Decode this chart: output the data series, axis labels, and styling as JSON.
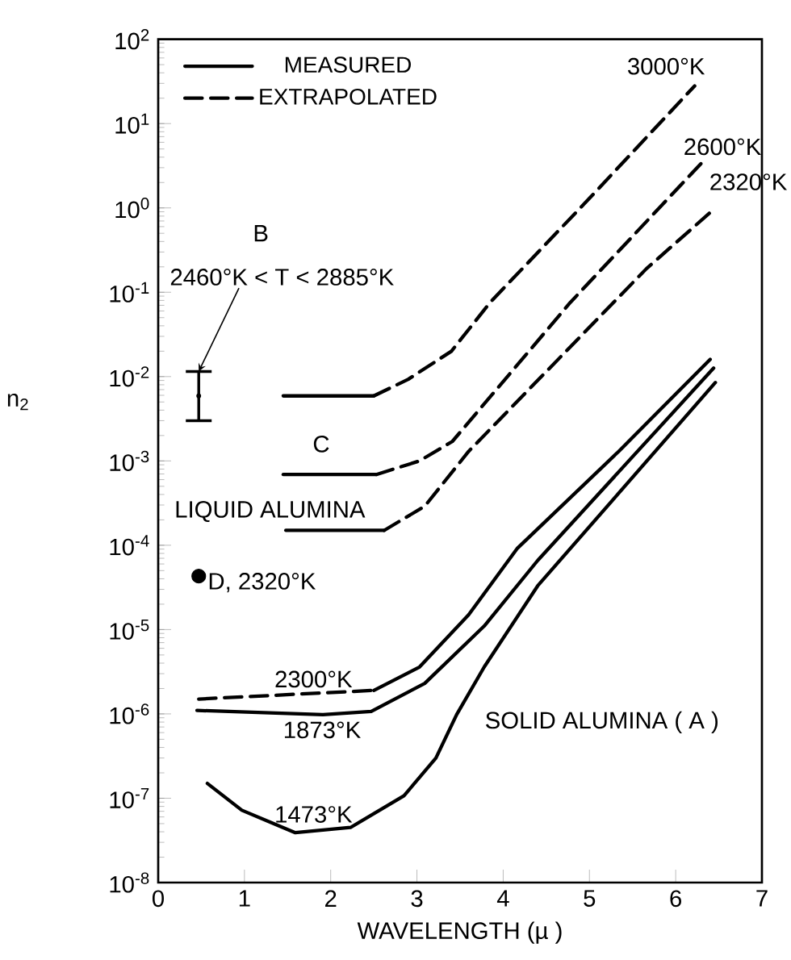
{
  "chart_data": {
    "type": "line",
    "xlabel": "WAVELENGTH (µ )",
    "ylabel": "n$_{2}$",
    "log": "y",
    "xlim": [
      0,
      7
    ],
    "ylim": [
      1e-08,
      100
    ],
    "xticks": [
      0,
      1,
      2,
      3,
      4,
      5,
      6,
      7
    ],
    "yticks": [
      {
        "value": 1e-08,
        "label": "10$^{-8}$"
      },
      {
        "value": 1e-07,
        "label": "10$^{-7}$"
      },
      {
        "value": 1e-06,
        "label": "10$^{-6}$"
      },
      {
        "value": 1e-05,
        "label": "10$^{-5}$"
      },
      {
        "value": 0.0001,
        "label": "10$^{-4}$"
      },
      {
        "value": 0.001,
        "label": "10$^{-3}$"
      },
      {
        "value": 0.01,
        "label": "10$^{-2}$"
      },
      {
        "value": 0.1,
        "label": "10$^{-1}$"
      },
      {
        "value": 1,
        "label": "10$^{0}$"
      },
      {
        "value": 10,
        "label": "10$^{1}$"
      },
      {
        "value": 100,
        "label": "10$^{2}$"
      }
    ],
    "grid": false,
    "legend": "top left",
    "series": [
      {
        "name": "MEASURED",
        "color": "#000000",
        "line_style": "solid",
        "x": [
          1.45,
          2.5
        ],
        "values": [
          0.0059,
          0.0059
        ]
      },
      {
        "name": "EXTRAPOLATED",
        "color": "#000000",
        "line_style": "dashed",
        "x": [
          2.5,
          2.9,
          3.4,
          3.85,
          5,
          6.22
        ],
        "values": [
          0.0059,
          0.0093,
          0.02,
          0.076,
          1.3,
          28
        ]
      },
      {
        "color": "#000000",
        "line_style": "solid",
        "x": [
          1.45,
          2.53
        ],
        "values": [
          0.00069,
          0.00069
        ]
      },
      {
        "color": "#000000",
        "line_style": "dashed",
        "x": [
          2.53,
          3.03,
          3.41,
          4.78,
          6.31
        ],
        "values": [
          0.00069,
          0.001,
          0.0017,
          0.076,
          3.5
        ]
      },
      {
        "color": "#000000",
        "line_style": "solid",
        "x": [
          1.48,
          2.62
        ],
        "values": [
          0.00015,
          0.00015
        ]
      },
      {
        "color": "#000000",
        "line_style": "dashed",
        "x": [
          2.62,
          3.09,
          3.6,
          5.66,
          6.46
        ],
        "values": [
          0.00015,
          0.00029,
          0.0013,
          0.19,
          1.0
        ]
      },
      {
        "color": "#000000",
        "line_style": "dashed",
        "x": [
          0.47,
          2.5
        ],
        "values": [
          1.5e-06,
          1.9e-06
        ]
      },
      {
        "color": "#000000",
        "line_style": "solid",
        "x": [
          2.5,
          3.03,
          3.6,
          4.16,
          5.34,
          6.4
        ],
        "values": [
          1.9e-06,
          3.6e-06,
          1.5e-05,
          9.1e-05,
          0.0013,
          0.016
        ]
      },
      {
        "color": "#000000",
        "line_style": "solid",
        "x": [
          0.45,
          1.91,
          2.47,
          3.09,
          3.78,
          4.4,
          6.44
        ],
        "values": [
          1.1e-06,
          9.8e-07,
          1.07e-06,
          2.3e-06,
          1.1e-05,
          6.6e-05,
          0.0126
        ]
      },
      {
        "color": "#000000",
        "line_style": "solid",
        "x": [
          0.57,
          0.97,
          1.59,
          2.23,
          2.85,
          3.22,
          3.46,
          3.78,
          4.4,
          6.46
        ],
        "values": [
          1.5e-07,
          7.2e-08,
          3.9e-08,
          4.5e-08,
          1.07e-07,
          3e-07,
          9.8e-07,
          3.6e-06,
          3.3e-05,
          0.0085
        ]
      },
      {
        "type": "scatter",
        "color": "#000000",
        "marker": "none",
        "x": [
          0.47
        ],
        "values": [
          0.0059
        ],
        "errors": [
          [
            0.003,
            0.0115
          ]
        ]
      },
      {
        "type": "scatter",
        "color": "#000000",
        "marker": "circle",
        "x": [
          0.47
        ],
        "values": [
          4.3e-05
        ]
      }
    ],
    "annotations": [
      {
        "text": "3000°K",
        "x": 6.22,
        "y": 28
      },
      {
        "text": "2600°K",
        "x": 6.31,
        "y": 3.5
      },
      {
        "text": "2320°K",
        "x": 6.46,
        "y": 1.0
      },
      {
        "text": "2300°K",
        "x": 1.8,
        "y": 1.7e-06
      },
      {
        "text": "1873°K",
        "x": 1.9,
        "y": 9.8e-07
      },
      {
        "text": "1473°K",
        "x": 1.8,
        "y": 4e-08
      },
      "SOLID ALUMINA ( A )",
      "LIQUID ALUMINA",
      "C",
      "B",
      {
        "text": "2460°K < T < 2885°K",
        "x": 0.47,
        "y": 0.0115
      },
      {
        "text": "D, 2320°K",
        "x": 0.47,
        "y": 4.3e-05
      }
    ]
  }
}
